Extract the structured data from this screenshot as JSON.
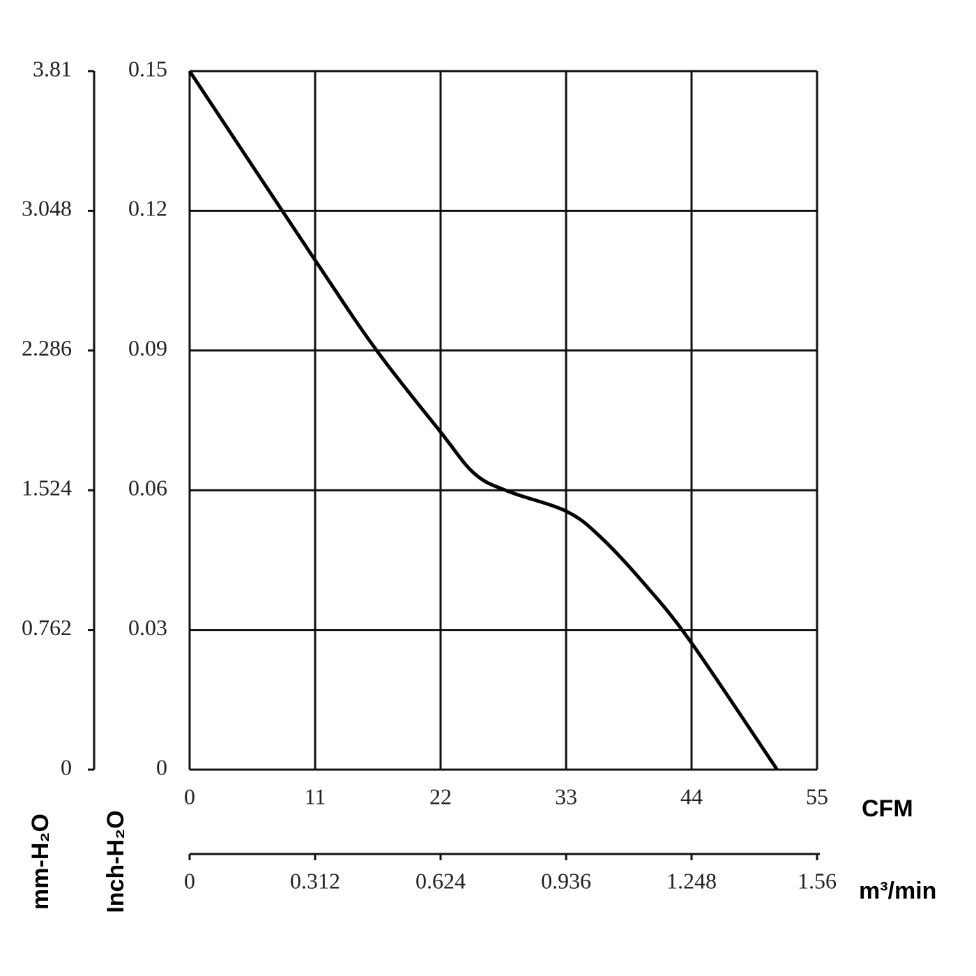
{
  "chart_data": {
    "type": "line",
    "x_label": "CFM",
    "x2_label": "m³/min",
    "y_label": "Inch-H₂O",
    "y2_label": "mm-H₂O",
    "x": [
      0,
      11,
      16.4,
      22,
      25,
      28,
      33,
      36,
      40,
      44,
      51.5
    ],
    "values": [
      0.15,
      0.1094,
      0.09,
      0.0725,
      0.0635,
      0.0597,
      0.0555,
      0.05,
      0.0395,
      0.0272,
      0
    ],
    "color": "#000000",
    "xlim": [
      0,
      55
    ],
    "xticks": [
      0,
      11,
      22,
      33,
      44,
      55
    ],
    "x2lim": [
      0,
      1.56
    ],
    "x2ticks": [
      0,
      0.312,
      0.624,
      0.936,
      1.248,
      1.56
    ],
    "ylim": [
      0,
      0.15
    ],
    "yticks": [
      0,
      0.03,
      0.06,
      0.09,
      0.12,
      0.15
    ],
    "y2lim": [
      0,
      3.81
    ],
    "y2ticks": [
      0,
      0.762,
      1.524,
      2.286,
      3.048,
      3.81
    ],
    "grid": true
  }
}
